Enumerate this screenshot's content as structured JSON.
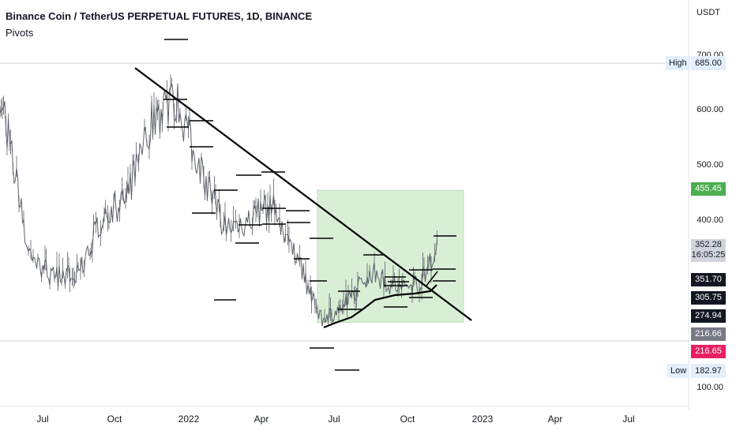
{
  "header": {
    "title": "Binance Coin / TetherUS PERPETUAL FUTURES, 1D, BINANCE",
    "indicator": "Pivots"
  },
  "axis": {
    "unit": "USDT",
    "y_ticks": [
      "700.00",
      "600.00",
      "500.00",
      "400.00",
      "100.00"
    ],
    "x_ticks": [
      "Jul",
      "Oct",
      "2022",
      "Apr",
      "Jul",
      "Oct",
      "2023",
      "Apr",
      "Jul"
    ]
  },
  "price_labels": {
    "high_tag": "High",
    "high_value": "685.00",
    "low_tag": "Low",
    "low_value": "182.97",
    "green_value": "455.45",
    "last_price": "352.28",
    "countdown": "16:05:25",
    "l1": "351.70",
    "l2": "305.75",
    "l3": "274.94",
    "l4": "216.66",
    "l5": "216.65"
  },
  "colors": {
    "price": "#5d606b",
    "trend": "#000000",
    "box_fill": "#d8efd5",
    "box_border": "#b9ddb3",
    "green_label": "#4caf50",
    "red_label": "#e91e63",
    "grey_label": "#787b86",
    "dark_label": "#131722",
    "light_label": "#d1d4dc"
  },
  "chart_data": {
    "type": "line",
    "title": "Binance Coin / TetherUS PERPETUAL FUTURES, 1D, BINANCE",
    "xlabel": "",
    "ylabel": "",
    "ylim": [
      100,
      720
    ],
    "grid": false,
    "x": [
      "2021-05",
      "2021-06",
      "2021-07",
      "2021-08",
      "2021-09",
      "2021-10",
      "2021-11",
      "2021-12",
      "2022-01",
      "2022-02",
      "2022-03",
      "2022-04",
      "2022-05",
      "2022-06",
      "2022-07",
      "2022-08",
      "2022-09",
      "2022-10",
      "2022-11"
    ],
    "series": [
      {
        "values": [
          640,
          330,
          300,
          300,
          410,
          440,
          580,
          620,
          500,
          390,
          400,
          430,
          330,
          220,
          250,
          310,
          280,
          285,
          352.28
        ]
      }
    ],
    "trendline": {
      "from": [
        "2021-10-25",
        677
      ],
      "to": [
        "2022-12-20",
        220
      ]
    },
    "levels": [
      {
        "name": "High",
        "value": 685.0
      },
      {
        "name": "Low",
        "value": 182.97
      },
      {
        "value": 455.45
      },
      {
        "value": 352.28
      },
      {
        "value": 351.7
      },
      {
        "value": 305.75
      },
      {
        "value": 274.94
      },
      {
        "value": 216.66
      },
      {
        "value": 216.65
      }
    ],
    "box": {
      "x_from": "2022-06-10",
      "x_to": "2022-12-10",
      "y_from": 216.66,
      "y_to": 455.45
    }
  }
}
